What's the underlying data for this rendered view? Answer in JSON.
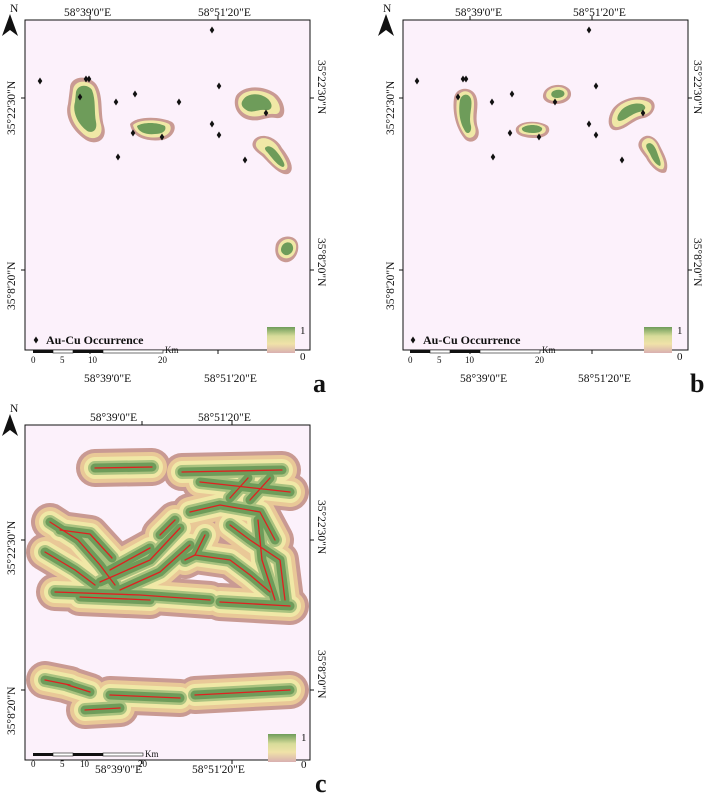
{
  "labels": {
    "north": "N",
    "lon_left": "58°39'0\"E",
    "lon_right": "58°51'20\"E",
    "lat_top": "35°22'30\"N",
    "lat_bottom": "35°8'20\"N",
    "legend_point": "Au-Cu Occurrence",
    "scale_unit": "Km",
    "scale_ticks": [
      "0",
      "5",
      "10",
      "20"
    ],
    "ramp_high": "1",
    "ramp_low": "0"
  },
  "panels": [
    {
      "id": "a",
      "letter": "a"
    },
    {
      "id": "b",
      "letter": "b"
    },
    {
      "id": "c",
      "letter": "c"
    }
  ],
  "colors": {
    "background": "#fcf1fb",
    "high": "#6e9c5a",
    "mid_high": "#a9c27f",
    "mid": "#f0e8a6",
    "mid_low": "#e9c897",
    "low": "#c99a93",
    "fault": "#e02020",
    "point": "#111111"
  }
}
